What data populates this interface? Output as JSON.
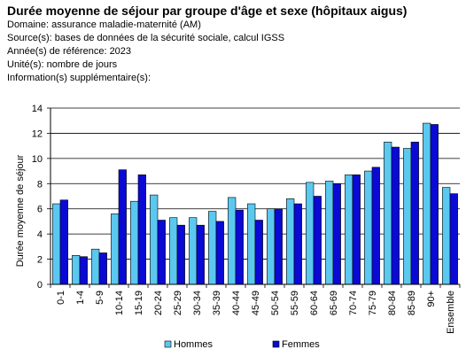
{
  "header": {
    "title": "Durée moyenne de séjour par groupe d'âge et sexe (hôpitaux aigus)",
    "domain": "Domaine: assurance maladie-maternité  (AM)",
    "source": "Source(s): bases de données de la sécurité sociale, calcul IGSS",
    "year": "Année(s) de référence: 2023",
    "unit": "Unité(s): nombre de jours",
    "info": "Information(s) supplémentaire(s):"
  },
  "colors": {
    "hommes": "#5bc8f0",
    "femmes": "#0a0ad4"
  },
  "chart_data": {
    "type": "bar",
    "title": "Durée moyenne de séjour par groupe d'âge et sexe (hôpitaux aigus)",
    "xlabel": "",
    "ylabel": "Durée moyenne de séjour",
    "ylim": [
      0,
      14
    ],
    "yticks": [
      "0",
      "2",
      "4",
      "6",
      "8",
      "10",
      "12",
      "14"
    ],
    "grid": true,
    "legend_position": "bottom",
    "categories": [
      "0-1",
      "1-4",
      "5-9",
      "10-14",
      "15-19",
      "20-24",
      "25-29",
      "30-34",
      "35-39",
      "40-44",
      "45-49",
      "50-54",
      "55-59",
      "60-64",
      "65-69",
      "70-74",
      "75-79",
      "80-84",
      "85-89",
      "90+",
      "Ensemble"
    ],
    "series": [
      {
        "name": "Hommes",
        "values": [
          6.4,
          2.3,
          2.8,
          5.6,
          6.6,
          7.1,
          5.3,
          5.3,
          5.8,
          6.9,
          6.4,
          6.0,
          6.8,
          8.1,
          8.2,
          8.7,
          9.0,
          11.3,
          10.8,
          12.8,
          7.7
        ]
      },
      {
        "name": "Femmes",
        "values": [
          6.7,
          2.2,
          2.5,
          9.1,
          8.7,
          5.1,
          4.7,
          4.7,
          5.0,
          5.9,
          5.1,
          6.0,
          6.4,
          7.0,
          8.0,
          8.7,
          9.3,
          10.9,
          11.3,
          12.7,
          7.2
        ]
      }
    ]
  }
}
